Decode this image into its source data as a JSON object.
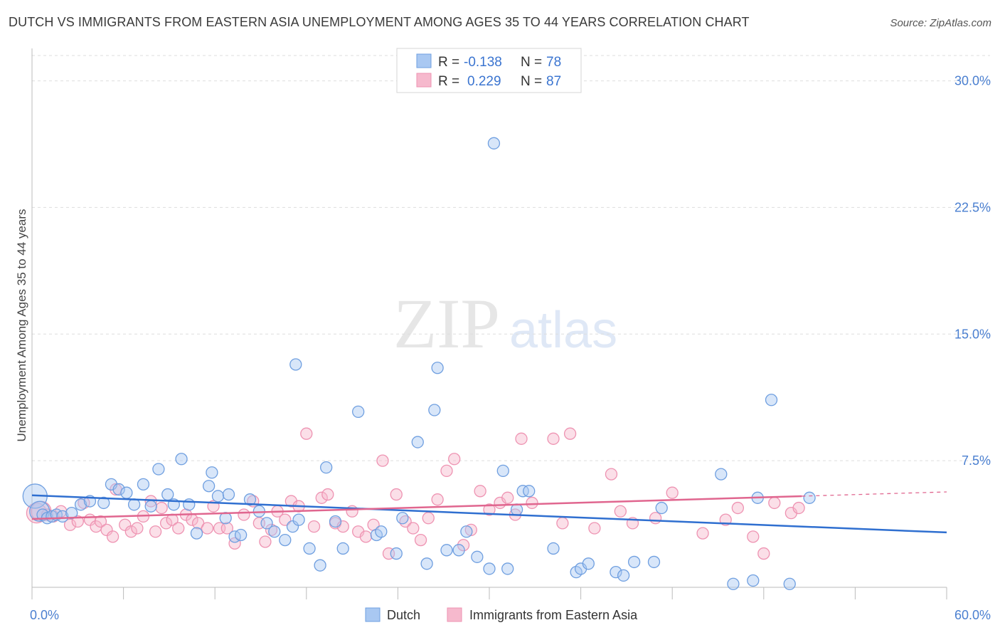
{
  "header": {
    "title": "DUTCH VS IMMIGRANTS FROM EASTERN ASIA UNEMPLOYMENT AMONG AGES 35 TO 44 YEARS CORRELATION CHART",
    "source": "Source: ZipAtlas.com"
  },
  "watermark": {
    "zip": "ZIP",
    "atlas": "atlas"
  },
  "legend_top": {
    "rows": [
      {
        "r_label": "R = ",
        "r_value": "-0.138",
        "n_label": "N = ",
        "n_value": "78"
      },
      {
        "r_label": "R = ",
        "r_value": "0.229",
        "n_label": "N = ",
        "n_value": "87"
      }
    ]
  },
  "colors": {
    "dutch_fill": "#a9c8f2",
    "dutch_stroke": "#6f9fe0",
    "dutch_line": "#2f6fd0",
    "asia_fill": "#f6b9cd",
    "asia_stroke": "#ee93b2",
    "asia_line": "#e0668f",
    "accent_text": "#3a74d0"
  },
  "chart_data": {
    "type": "scatter",
    "title": "DUTCH VS IMMIGRANTS FROM EASTERN ASIA UNEMPLOYMENT AMONG AGES 35 TO 44 YEARS CORRELATION CHART",
    "xlabel": "",
    "ylabel": "Unemployment Among Ages 35 to 44 years",
    "xlim": [
      0,
      60
    ],
    "ylim": [
      0,
      31.5
    ],
    "x_tick_labels": [
      "0.0%",
      "60.0%"
    ],
    "y_ticks": [
      7.5,
      15.0,
      22.5,
      30.0
    ],
    "y_tick_labels": [
      "7.5%",
      "15.0%",
      "22.5%",
      "30.0%"
    ],
    "grid": "horizontal dashed",
    "legend_position": "top-center and bottom",
    "series": [
      {
        "name": "Dutch",
        "R": -0.138,
        "N": 78,
        "trend": {
          "x": [
            0,
            60
          ],
          "y": [
            5.45,
            3.25
          ]
        },
        "points": [
          [
            0.2,
            5.4
          ],
          [
            0.5,
            4.5
          ],
          [
            0.7,
            4.3
          ],
          [
            1.0,
            4.1
          ],
          [
            1.3,
            4.2
          ],
          [
            1.6,
            4.3
          ],
          [
            2.0,
            4.2
          ],
          [
            2.6,
            4.4
          ],
          [
            3.2,
            4.9
          ],
          [
            3.8,
            5.1
          ],
          [
            4.7,
            5.0
          ],
          [
            5.2,
            6.1
          ],
          [
            5.7,
            5.8
          ],
          [
            6.2,
            5.6
          ],
          [
            6.7,
            4.9
          ],
          [
            7.3,
            6.1
          ],
          [
            7.8,
            4.8
          ],
          [
            8.3,
            7.0
          ],
          [
            8.9,
            5.5
          ],
          [
            9.3,
            4.9
          ],
          [
            9.8,
            7.6
          ],
          [
            10.3,
            4.9
          ],
          [
            10.8,
            3.2
          ],
          [
            11.6,
            6.0
          ],
          [
            11.8,
            6.8
          ],
          [
            12.2,
            5.4
          ],
          [
            12.7,
            4.1
          ],
          [
            12.9,
            5.5
          ],
          [
            13.3,
            3.0
          ],
          [
            13.7,
            3.1
          ],
          [
            14.3,
            5.2
          ],
          [
            14.9,
            4.5
          ],
          [
            15.4,
            3.8
          ],
          [
            15.9,
            3.3
          ],
          [
            16.6,
            2.8
          ],
          [
            17.1,
            3.6
          ],
          [
            17.3,
            13.2
          ],
          [
            17.5,
            4.0
          ],
          [
            18.2,
            2.3
          ],
          [
            18.9,
            1.3
          ],
          [
            19.3,
            7.1
          ],
          [
            19.9,
            3.9
          ],
          [
            20.4,
            2.3
          ],
          [
            21.4,
            10.4
          ],
          [
            22.6,
            3.1
          ],
          [
            22.9,
            3.3
          ],
          [
            23.9,
            2.0
          ],
          [
            24.3,
            4.1
          ],
          [
            25.3,
            8.6
          ],
          [
            25.9,
            1.4
          ],
          [
            26.4,
            10.5
          ],
          [
            26.6,
            13.0
          ],
          [
            27.2,
            2.2
          ],
          [
            28.0,
            2.2
          ],
          [
            28.5,
            3.3
          ],
          [
            29.2,
            1.8
          ],
          [
            30.0,
            1.1
          ],
          [
            30.3,
            26.3
          ],
          [
            30.9,
            6.9
          ],
          [
            31.2,
            1.1
          ],
          [
            31.8,
            4.6
          ],
          [
            32.2,
            5.7
          ],
          [
            32.6,
            5.7
          ],
          [
            34.2,
            2.3
          ],
          [
            35.7,
            0.9
          ],
          [
            36.0,
            1.1
          ],
          [
            36.5,
            1.4
          ],
          [
            38.3,
            0.9
          ],
          [
            38.8,
            0.7
          ],
          [
            39.5,
            1.5
          ],
          [
            40.8,
            1.5
          ],
          [
            41.3,
            4.7
          ],
          [
            45.2,
            6.7
          ],
          [
            46.0,
            0.2
          ],
          [
            47.3,
            0.4
          ],
          [
            47.6,
            5.3
          ],
          [
            48.5,
            11.1
          ],
          [
            49.7,
            0.2
          ],
          [
            51.0,
            5.3
          ]
        ]
      },
      {
        "name": "Immigrants from Eastern Asia",
        "R": 0.229,
        "N": 87,
        "trend": {
          "x": [
            0,
            50.5
          ],
          "y": [
            4.05,
            5.4
          ],
          "dashed_to": [
            60,
            5.65
          ]
        },
        "points": [
          [
            0.3,
            4.4
          ],
          [
            0.6,
            4.5
          ],
          [
            1.0,
            4.3
          ],
          [
            1.4,
            4.2
          ],
          [
            1.9,
            4.5
          ],
          [
            2.5,
            3.7
          ],
          [
            3.0,
            3.9
          ],
          [
            3.4,
            5.0
          ],
          [
            3.8,
            4.0
          ],
          [
            4.2,
            3.6
          ],
          [
            4.5,
            3.9
          ],
          [
            4.9,
            3.4
          ],
          [
            5.3,
            3.0
          ],
          [
            5.5,
            5.8
          ],
          [
            6.1,
            3.7
          ],
          [
            6.5,
            3.3
          ],
          [
            6.9,
            3.5
          ],
          [
            7.3,
            4.2
          ],
          [
            7.8,
            5.1
          ],
          [
            8.1,
            3.3
          ],
          [
            8.5,
            4.7
          ],
          [
            8.8,
            3.8
          ],
          [
            9.2,
            4.0
          ],
          [
            9.6,
            3.5
          ],
          [
            10.1,
            4.3
          ],
          [
            10.5,
            4.0
          ],
          [
            10.9,
            3.8
          ],
          [
            11.5,
            3.5
          ],
          [
            11.9,
            4.8
          ],
          [
            12.3,
            3.5
          ],
          [
            12.8,
            3.5
          ],
          [
            13.3,
            2.6
          ],
          [
            13.9,
            4.3
          ],
          [
            14.5,
            5.1
          ],
          [
            14.9,
            3.8
          ],
          [
            15.3,
            2.7
          ],
          [
            15.7,
            3.4
          ],
          [
            16.1,
            4.5
          ],
          [
            16.6,
            4.0
          ],
          [
            17.0,
            5.1
          ],
          [
            17.5,
            4.8
          ],
          [
            18.0,
            9.1
          ],
          [
            18.5,
            3.6
          ],
          [
            19.0,
            5.3
          ],
          [
            19.4,
            5.5
          ],
          [
            19.9,
            3.8
          ],
          [
            20.4,
            3.6
          ],
          [
            21.0,
            4.5
          ],
          [
            21.4,
            3.3
          ],
          [
            21.9,
            3.0
          ],
          [
            22.4,
            3.7
          ],
          [
            23.0,
            7.5
          ],
          [
            23.4,
            2.0
          ],
          [
            23.9,
            5.5
          ],
          [
            24.5,
            3.9
          ],
          [
            25.0,
            3.5
          ],
          [
            25.5,
            2.8
          ],
          [
            26.0,
            4.1
          ],
          [
            26.6,
            5.2
          ],
          [
            27.2,
            6.9
          ],
          [
            27.7,
            7.6
          ],
          [
            28.3,
            2.5
          ],
          [
            28.8,
            3.4
          ],
          [
            29.4,
            5.7
          ],
          [
            30.0,
            4.6
          ],
          [
            30.7,
            5.0
          ],
          [
            31.2,
            5.3
          ],
          [
            31.7,
            4.3
          ],
          [
            32.1,
            8.8
          ],
          [
            32.8,
            5.0
          ],
          [
            34.2,
            8.8
          ],
          [
            34.8,
            3.8
          ],
          [
            35.3,
            9.1
          ],
          [
            36.9,
            3.5
          ],
          [
            38.0,
            6.7
          ],
          [
            38.6,
            4.5
          ],
          [
            39.4,
            3.8
          ],
          [
            40.9,
            4.1
          ],
          [
            42.0,
            5.6
          ],
          [
            44.0,
            3.2
          ],
          [
            45.5,
            4.0
          ],
          [
            46.3,
            4.7
          ],
          [
            47.3,
            3.0
          ],
          [
            48.0,
            2.0
          ],
          [
            48.7,
            5.0
          ],
          [
            49.8,
            4.4
          ],
          [
            50.3,
            4.7
          ]
        ]
      }
    ]
  },
  "bottom_legend": {
    "items": [
      "Dutch",
      "Immigrants from Eastern Asia"
    ]
  }
}
